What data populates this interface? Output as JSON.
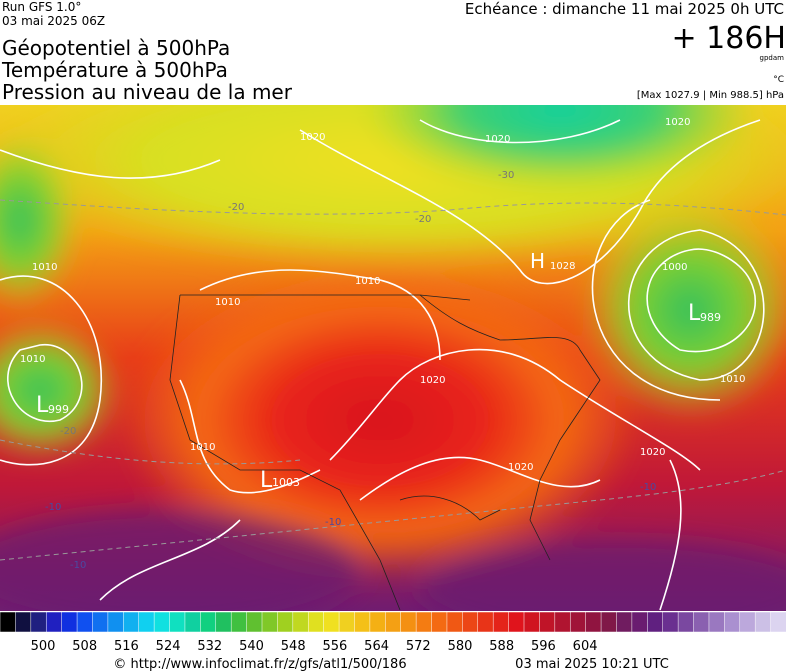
{
  "header": {
    "run": "Run GFS 1.0°",
    "run_date": "03 mai 2025 06Z",
    "titles": [
      "Géopotentiel à 500hPa",
      "Température à 500hPa",
      "Pression au niveau de la mer"
    ],
    "echeance": "Echéance : dimanche 11 mai 2025 0h UTC",
    "lead": "+ 186H",
    "unit_geo": "gpdam",
    "unit_temp": "°C",
    "pressure_range": "[Max 1027.9 | Min 988.5] hPa"
  },
  "map": {
    "labels": [
      "L",
      "999",
      "L",
      "1003",
      "L",
      "989",
      "H",
      "1028",
      "1010",
      "1010",
      "1010",
      "1010",
      "1010",
      "1020",
      "1020",
      "1020",
      "1020",
      "1020",
      "1020",
      "1010",
      "1000",
      "-20",
      "-20",
      "-20",
      "-30",
      "-10",
      "-10",
      "-10",
      "-10"
    ]
  },
  "scale": {
    "labels": [
      "500",
      "508",
      "516",
      "524",
      "532",
      "540",
      "548",
      "556",
      "564",
      "572",
      "580",
      "588",
      "596",
      "604"
    ]
  },
  "footer": {
    "url": "© http://www.infoclimat.fr/z/gfs/atl1/500/186",
    "generated": "03 mai 2025 10:21 UTC"
  }
}
